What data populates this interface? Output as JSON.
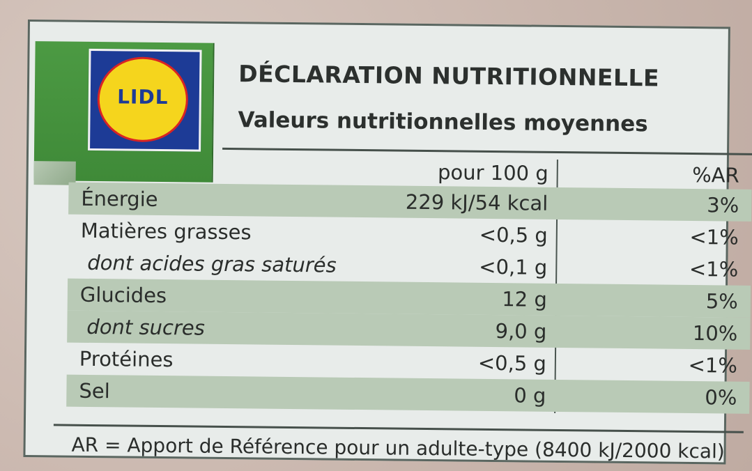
{
  "brand": {
    "logo_text": "LIDL"
  },
  "title": "DÉCLARATION NUTRITIONNELLE",
  "subtitle": "Valeurs nutritionnelles moyennes",
  "table": {
    "header": {
      "per": "pour 100 g",
      "ar": "%AR"
    },
    "rows": [
      {
        "name": "Énergie",
        "value": "229 kJ/54 kcal",
        "ar": "3%"
      },
      {
        "name": "Matières grasses",
        "value": "<0,5 g",
        "ar": "<1%"
      },
      {
        "name": "dont acides gras saturés",
        "value": "<0,1 g",
        "ar": "<1%"
      },
      {
        "name": "Glucides",
        "value": "12 g",
        "ar": "5%"
      },
      {
        "name": "dont sucres",
        "value": "9,0 g",
        "ar": "10%"
      },
      {
        "name": "Protéines",
        "value": "<0,5 g",
        "ar": "<1%"
      },
      {
        "name": "Sel",
        "value": "0 g",
        "ar": "0%"
      }
    ]
  },
  "footnote": "AR = Apport de Référence pour un adulte-type (8400 kJ/2000 kcal)"
}
